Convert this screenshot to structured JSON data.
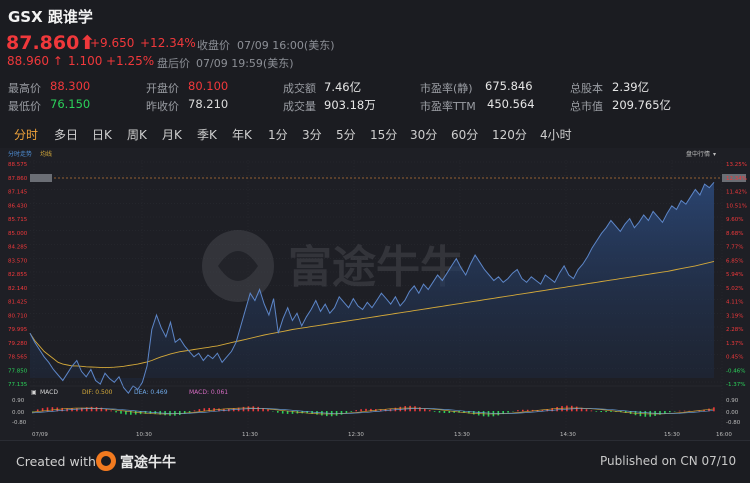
{
  "header": {
    "ticker": "GSX",
    "name": "跟谁学",
    "price": "87.860",
    "change": "+9.650",
    "change_pct": "+12.34%",
    "close_label": "收盘价",
    "close_time": "07/09 16:00(美东)",
    "after_price": "88.960",
    "after_change": "1.100",
    "after_change_pct": "+1.25%",
    "after_label": "盘后价",
    "after_time": "07/09 19:59(美东)"
  },
  "stats": {
    "high_label": "最高价",
    "high": "88.300",
    "low_label": "最低价",
    "low": "76.150",
    "open_label": "开盘价",
    "open": "80.100",
    "prev_label": "昨收价",
    "prev": "78.210",
    "amount_label": "成交额",
    "amount": "7.46亿",
    "volume_label": "成交量",
    "volume": "903.18万",
    "pe_static_label": "市盈率(静)",
    "pe_static": "675.846",
    "pe_ttm_label": "市盈率TTM",
    "pe_ttm": "450.564",
    "shares_label": "总股本",
    "shares": "2.39亿",
    "mcap_label": "总市值",
    "mcap": "209.765亿"
  },
  "tabs": [
    "分时",
    "多日",
    "日K",
    "周K",
    "月K",
    "季K",
    "年K",
    "1分",
    "3分",
    "5分",
    "15分",
    "30分",
    "60分",
    "120分",
    "4小时"
  ],
  "chart": {
    "legend_left": "分时走势",
    "legend_avg": "均线",
    "legend_right": "盘中行情",
    "watermark": "富途牛牛",
    "price_ticks": [
      "88.575",
      "87.860",
      "87.145",
      "86.430",
      "85.715",
      "85.000",
      "84.285",
      "83.570",
      "82.855",
      "82.140",
      "81.425",
      "80.710",
      "79.995",
      "79.280",
      "78.565",
      "77.850",
      "77.135"
    ],
    "pct_ticks": [
      "13.25%",
      "12.34%",
      "11.42%",
      "10.51%",
      "9.60%",
      "8.68%",
      "7.77%",
      "6.85%",
      "5.94%",
      "5.02%",
      "4.11%",
      "3.19%",
      "2.28%",
      "1.37%",
      "0.45%",
      "-0.46%",
      "-1.37%"
    ],
    "time_ticks": [
      "07/09",
      "10:30",
      "11:30",
      "12:30",
      "13:30",
      "14:30",
      "15:30",
      "16:00"
    ],
    "macd_label": "MACD",
    "dif_label": "DIF: 0.500",
    "dea_label": "DEA: 0.469",
    "macd_value_label": "MACD: 0.061",
    "macd_ticks": [
      "0.90",
      "0.00",
      "-0.80"
    ],
    "macd_ticks_right": [
      "0.90",
      "0.00",
      "-0.80"
    ]
  },
  "chart_data": {
    "type": "line",
    "ylim": [
      77.135,
      88.575
    ],
    "prev_close": 78.21,
    "series": [],
    "price": [
      79.6,
      79.1,
      78.7,
      78.3,
      78.0,
      77.6,
      77.3,
      77.0,
      77.4,
      77.8,
      78.1,
      77.5,
      77.2,
      77.6,
      77.0,
      76.8,
      77.4,
      77.1,
      76.9,
      77.2,
      76.6,
      76.3,
      76.7,
      76.5,
      76.9,
      77.8,
      79.8,
      80.6,
      79.9,
      79.4,
      80.2,
      79.1,
      79.3,
      78.9,
      78.6,
      78.3,
      78.5,
      78.1,
      78.4,
      78.2,
      78.5,
      78.0,
      78.3,
      78.6,
      79.1,
      80.0,
      80.9,
      81.8,
      81.4,
      82.0,
      81.2,
      80.6,
      81.5,
      79.6,
      80.4,
      81.0,
      80.3,
      80.7,
      80.0,
      80.5,
      80.9,
      81.4,
      80.8,
      81.2,
      80.7,
      81.0,
      81.6,
      81.3,
      81.0,
      81.5,
      81.1,
      80.9,
      81.3,
      81.0,
      81.4,
      81.8,
      81.5,
      81.2,
      81.6,
      81.1,
      81.4,
      81.9,
      82.2,
      81.8,
      82.3,
      82.0,
      82.4,
      82.8,
      82.5,
      82.9,
      83.3,
      83.7,
      83.2,
      82.8,
      83.4,
      83.9,
      83.5,
      83.1,
      82.8,
      82.5,
      82.7,
      82.4,
      82.6,
      82.9,
      83.1,
      82.6,
      82.4,
      82.7,
      82.5,
      82.3,
      82.8,
      82.6,
      82.4,
      82.9,
      83.3,
      82.8,
      82.6,
      83.1,
      83.4,
      83.8,
      84.3,
      84.7,
      85.1,
      85.4,
      85.8,
      85.5,
      85.2,
      85.6,
      85.9,
      85.4,
      85.7,
      86.1,
      85.8,
      86.3,
      86.0,
      85.7,
      86.2,
      86.6,
      86.4,
      86.9,
      86.7,
      87.1,
      87.5,
      87.2,
      87.8,
      87.6,
      87.9
    ],
    "avg": [
      79.6,
      79.2,
      78.9,
      78.6,
      78.4,
      78.2,
      78.0,
      77.9,
      77.85,
      77.8,
      77.8,
      77.78,
      77.75,
      77.74,
      77.73,
      77.72,
      77.72,
      77.72,
      77.73,
      77.75,
      77.78,
      77.82,
      77.86,
      77.9,
      77.96,
      78.02,
      78.1,
      78.2,
      78.3,
      78.38,
      78.46,
      78.52,
      78.58,
      78.62,
      78.66,
      78.7,
      78.74,
      78.78,
      78.82,
      78.86,
      78.9,
      78.96,
      79.02,
      79.08,
      79.14,
      79.2,
      79.26,
      79.32,
      79.38,
      79.44,
      79.5,
      79.55,
      79.6,
      79.65,
      79.7,
      79.75,
      79.8,
      79.84,
      79.88,
      79.92,
      79.96,
      80.0,
      80.04,
      80.08,
      80.12,
      80.16,
      80.2,
      80.24,
      80.28,
      80.32,
      80.36,
      80.4,
      80.44,
      80.48,
      80.52,
      80.56,
      80.6,
      80.64,
      80.68,
      80.72,
      80.76,
      80.8,
      80.84,
      80.88,
      80.92,
      80.96,
      81.0,
      81.04,
      81.08,
      81.12,
      81.16,
      81.2,
      81.24,
      81.28,
      81.32,
      81.36,
      81.4,
      81.44,
      81.48,
      81.52,
      81.56,
      81.6,
      81.64,
      81.68,
      81.72,
      81.76,
      81.8,
      81.84,
      81.88,
      81.92,
      81.96,
      82.0,
      82.04,
      82.08,
      82.12,
      82.16,
      82.2,
      82.24,
      82.28,
      82.32,
      82.36,
      82.4,
      82.44,
      82.48,
      82.52,
      82.56,
      82.6,
      82.64,
      82.68,
      82.72,
      82.76,
      82.8,
      82.84,
      82.88,
      82.92,
      82.96,
      83.0,
      83.05,
      83.1,
      83.15,
      83.2,
      83.25,
      83.3,
      83.36,
      83.42,
      83.48,
      83.55
    ]
  },
  "footer": {
    "created_with": "Created with",
    "app_name": "富途牛牛",
    "published": "Published on CN 07/10"
  },
  "colors": {
    "up": "#f0383b",
    "down": "#2bd25a",
    "price_line": "#5d86c8",
    "avg_line": "#d4a93a",
    "accent": "#f0a33a"
  }
}
